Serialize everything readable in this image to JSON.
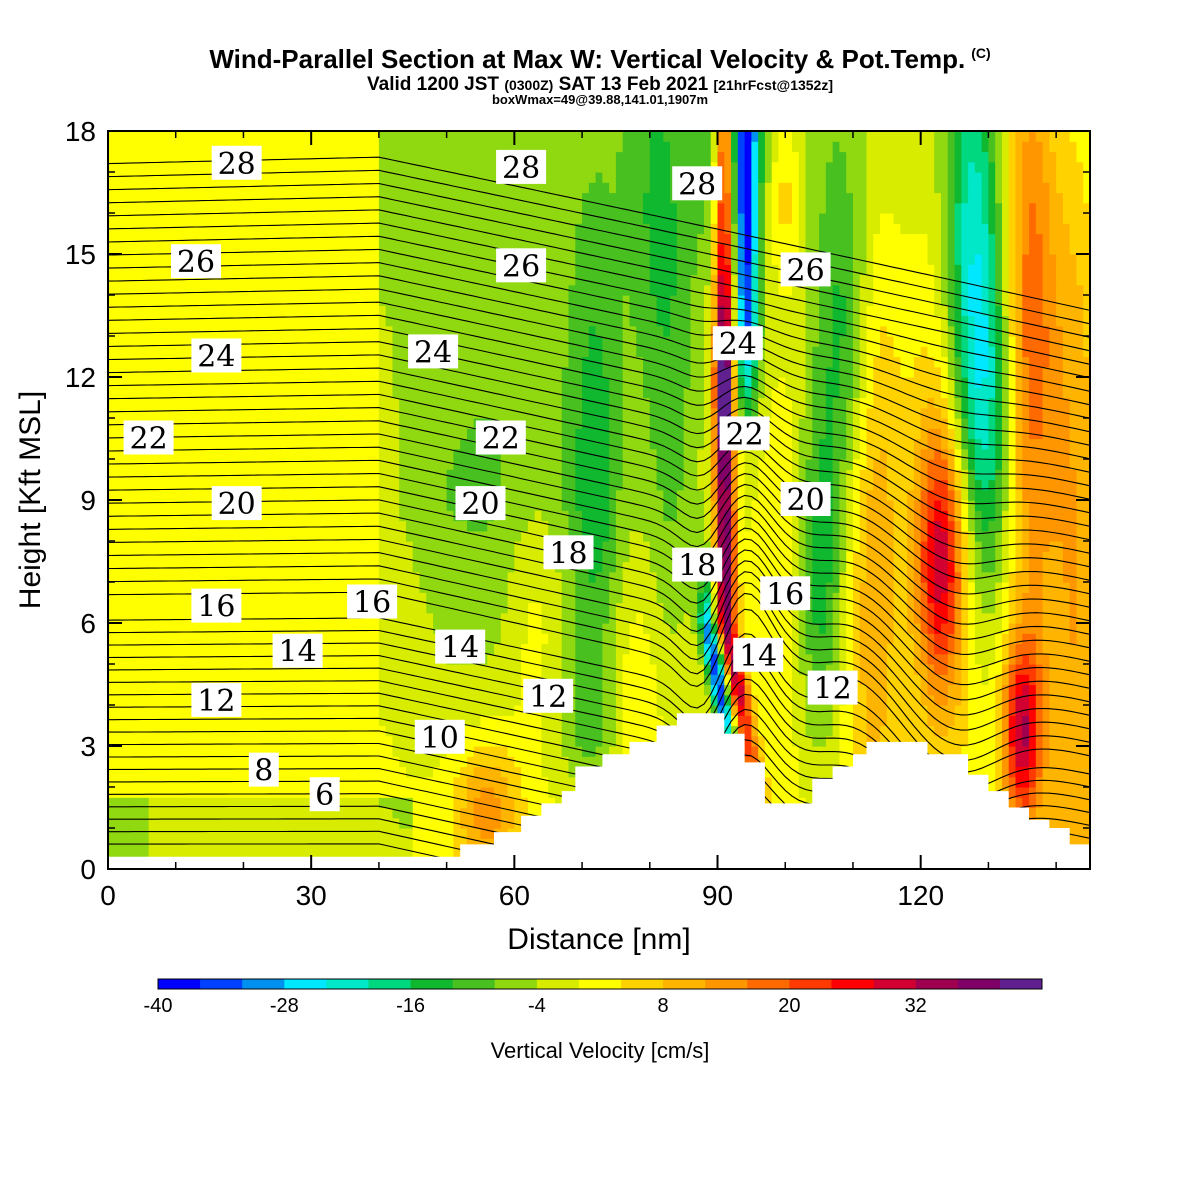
{
  "title": {
    "main": "Wind-Parallel Section at Max W: Vertical Velocity & Pot.Temp.",
    "copyright": "(C)",
    "valid_prefix": "Valid 1200 JST",
    "valid_utc": "(0300Z)",
    "valid_date": "SAT 13 Feb 2021",
    "forecast": "[21hrFcst@1352z]",
    "boxinfo": "boxWmax=49@39.88,141.01,1907m"
  },
  "chart_data": {
    "type": "heatmap",
    "xlabel": "Distance [nm]",
    "ylabel": "Height [Kft MSL]",
    "xlim": [
      0,
      145
    ],
    "ylim": [
      0,
      18
    ],
    "xticks": [
      0,
      30,
      60,
      90,
      120
    ],
    "yticks": [
      0,
      3,
      6,
      9,
      12,
      15,
      18
    ],
    "grid": false,
    "colorbar": {
      "title": "Vertical Velocity [cm/s]",
      "levels_min": -40,
      "levels_max": 40,
      "step": 4,
      "tick_labels": [
        -40,
        -28,
        -16,
        -4,
        8,
        20,
        32
      ],
      "colors": [
        "#0000ff",
        "#0040ff",
        "#0090f0",
        "#00e8ff",
        "#00e8c8",
        "#00d880",
        "#10b830",
        "#48c020",
        "#90d810",
        "#d8ec00",
        "#ffff00",
        "#ffd200",
        "#ffb400",
        "#ff9600",
        "#ff6a00",
        "#ff3a00",
        "#ff0000",
        "#d20030",
        "#a00050",
        "#800068",
        "#602090"
      ]
    },
    "series": [
      {
        "name": "Vertical Velocity [cm/s]",
        "note": "filled shading; approximate features",
        "features": [
          {
            "kind": "updraft_core",
            "x_top": 89,
            "x_bottom": 96,
            "max": 36
          },
          {
            "kind": "downdraft_core",
            "x_top": 94,
            "x_bottom": 89,
            "min": -32
          }
        ]
      },
      {
        "name": "Pot.Temp.",
        "contour_labels": [
          {
            "text": "28",
            "x": 19,
            "y": 17.2
          },
          {
            "text": "28",
            "x": 61,
            "y": 17.1
          },
          {
            "text": "28",
            "x": 87,
            "y": 16.7
          },
          {
            "text": "26",
            "x": 13,
            "y": 14.8
          },
          {
            "text": "26",
            "x": 61,
            "y": 14.7
          },
          {
            "text": "26",
            "x": 103,
            "y": 14.6
          },
          {
            "text": "24",
            "x": 16,
            "y": 12.5
          },
          {
            "text": "24",
            "x": 48,
            "y": 12.6
          },
          {
            "text": "24",
            "x": 93,
            "y": 12.8
          },
          {
            "text": "22",
            "x": 6,
            "y": 10.5
          },
          {
            "text": "22",
            "x": 58,
            "y": 10.5
          },
          {
            "text": "22",
            "x": 94,
            "y": 10.6
          },
          {
            "text": "20",
            "x": 19,
            "y": 8.9
          },
          {
            "text": "20",
            "x": 55,
            "y": 8.9
          },
          {
            "text": "20",
            "x": 103,
            "y": 9.0
          },
          {
            "text": "18",
            "x": 68,
            "y": 7.7
          },
          {
            "text": "18",
            "x": 87,
            "y": 7.4
          },
          {
            "text": "16",
            "x": 16,
            "y": 6.4
          },
          {
            "text": "16",
            "x": 39,
            "y": 6.5
          },
          {
            "text": "16",
            "x": 100,
            "y": 6.7
          },
          {
            "text": "14",
            "x": 28,
            "y": 5.3
          },
          {
            "text": "14",
            "x": 52,
            "y": 5.4
          },
          {
            "text": "14",
            "x": 96,
            "y": 5.2
          },
          {
            "text": "12",
            "x": 16,
            "y": 4.1
          },
          {
            "text": "12",
            "x": 65,
            "y": 4.2
          },
          {
            "text": "12",
            "x": 107,
            "y": 4.4
          },
          {
            "text": "10",
            "x": 49,
            "y": 3.2
          },
          {
            "text": "8",
            "x": 23,
            "y": 2.4
          },
          {
            "text": "6",
            "x": 32,
            "y": 1.8
          }
        ]
      }
    ],
    "terrain_top": [
      [
        0,
        0.3
      ],
      [
        52,
        0.3
      ],
      [
        52,
        0.6
      ],
      [
        57,
        0.6
      ],
      [
        57,
        0.9
      ],
      [
        61,
        0.9
      ],
      [
        61,
        1.3
      ],
      [
        64,
        1.3
      ],
      [
        64,
        1.6
      ],
      [
        67,
        1.6
      ],
      [
        67,
        1.9
      ],
      [
        69,
        1.9
      ],
      [
        69,
        2.5
      ],
      [
        73,
        2.5
      ],
      [
        73,
        2.8
      ],
      [
        77,
        2.8
      ],
      [
        77,
        3.1
      ],
      [
        81,
        3.1
      ],
      [
        81,
        3.5
      ],
      [
        84,
        3.5
      ],
      [
        84,
        3.8
      ],
      [
        91,
        3.8
      ],
      [
        91,
        3.3
      ],
      [
        94,
        3.3
      ],
      [
        94,
        2.6
      ],
      [
        97,
        2.6
      ],
      [
        97,
        1.6
      ],
      [
        104,
        1.6
      ],
      [
        104,
        2.2
      ],
      [
        107,
        2.2
      ],
      [
        107,
        2.5
      ],
      [
        110,
        2.5
      ],
      [
        110,
        2.8
      ],
      [
        112,
        2.8
      ],
      [
        112,
        3.1
      ],
      [
        121,
        3.1
      ],
      [
        121,
        2.8
      ],
      [
        127,
        2.8
      ],
      [
        127,
        2.3
      ],
      [
        130,
        2.3
      ],
      [
        130,
        1.9
      ],
      [
        133,
        1.9
      ],
      [
        133,
        1.5
      ],
      [
        136,
        1.5
      ],
      [
        136,
        1.2
      ],
      [
        139,
        1.2
      ],
      [
        139,
        1.0
      ],
      [
        142,
        1.0
      ],
      [
        142,
        0.6
      ],
      [
        145,
        0.6
      ]
    ]
  }
}
